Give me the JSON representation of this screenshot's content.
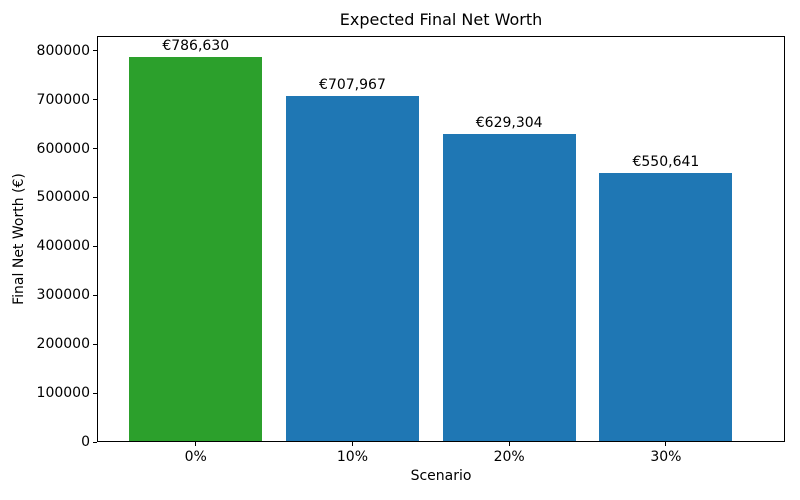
{
  "chart_data": {
    "type": "bar",
    "title": "Expected Final Net Worth",
    "xlabel": "Scenario",
    "ylabel": "Final Net Worth (€)",
    "categories": [
      "0%",
      "10%",
      "20%",
      "30%"
    ],
    "values": [
      786630,
      707967,
      629304,
      550641
    ],
    "bar_labels": [
      "€786,630",
      "€707,967",
      "€629,304",
      "€550,641"
    ],
    "bar_colors": [
      "#2ca02c",
      "#1f77b4",
      "#1f77b4",
      "#1f77b4"
    ],
    "ylim": [
      0,
      830000
    ],
    "yticks": [
      0,
      100000,
      200000,
      300000,
      400000,
      500000,
      600000,
      700000,
      800000
    ],
    "grid": false,
    "legend_position": "none"
  }
}
